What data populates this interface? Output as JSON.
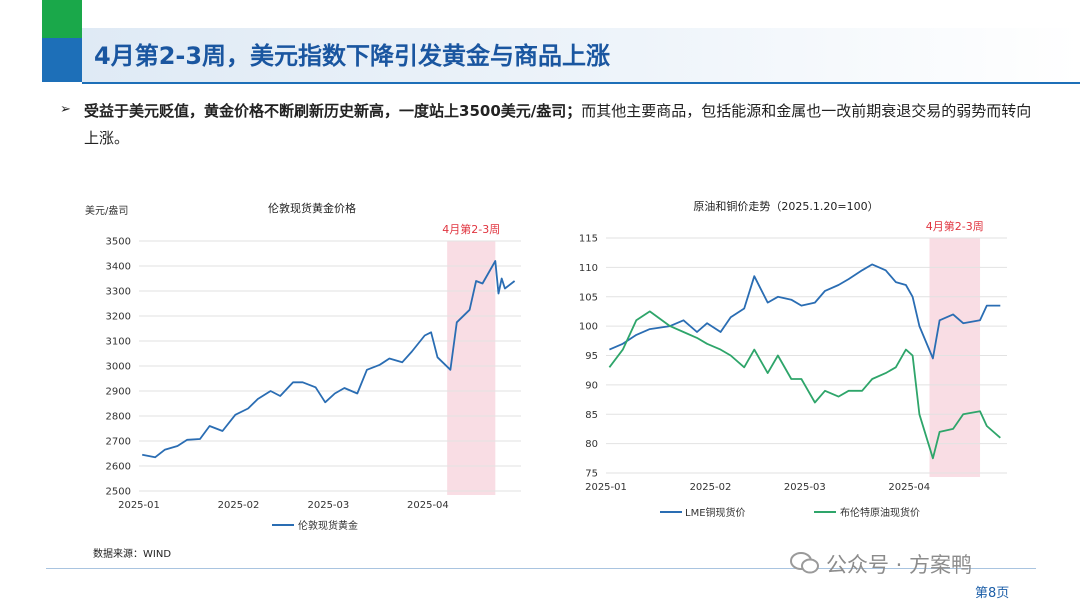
{
  "header": {
    "title": "4月第2-3周，美元指数下降引发黄金与商品上涨",
    "bullet_marker": "➢",
    "bullet_bold": "受益于美元贬值，黄金价格不断刷新历史新高，一度站上3500美元/盎司；",
    "bullet_rest": "而其他主要商品，包括能源和金属也一改前期衰退交易的弱势而转向上涨。"
  },
  "colors": {
    "title": "#1a56a0",
    "blue_series": "#2a6db3",
    "green_series": "#2ea56a",
    "highlight": "#f9dde4",
    "highlight_label": "#e0343f",
    "grid": "#e2e2e2"
  },
  "chart_data": [
    {
      "type": "line",
      "title": "伦敦现货黄金价格",
      "ylabel": "美元/盎司",
      "ylim": [
        2500,
        3500
      ],
      "yticks": [
        "2500",
        "2600",
        "2700",
        "2800",
        "2900",
        "3000",
        "3100",
        "3200",
        "3300",
        "3400",
        "3500"
      ],
      "xticks": [
        {
          "label": "2025-01",
          "date": "2025-01-01"
        },
        {
          "label": "2025-02",
          "date": "2025-02-01"
        },
        {
          "label": "2025-03",
          "date": "2025-03-01"
        },
        {
          "label": "2025-04",
          "date": "2025-04-01"
        }
      ],
      "highlight": {
        "label": "4月第2-3周",
        "from": "2025-04-07",
        "to": "2025-04-22"
      },
      "series": [
        {
          "name": "伦敦现货黄金",
          "color": "#2a6db3",
          "points": [
            [
              "2025-01-02",
              2645
            ],
            [
              "2025-01-06",
              2635
            ],
            [
              "2025-01-09",
              2665
            ],
            [
              "2025-01-13",
              2680
            ],
            [
              "2025-01-16",
              2705
            ],
            [
              "2025-01-20",
              2708
            ],
            [
              "2025-01-23",
              2760
            ],
            [
              "2025-01-27",
              2740
            ],
            [
              "2025-01-31",
              2805
            ],
            [
              "2025-02-04",
              2830
            ],
            [
              "2025-02-07",
              2868
            ],
            [
              "2025-02-11",
              2900
            ],
            [
              "2025-02-14",
              2880
            ],
            [
              "2025-02-18",
              2935
            ],
            [
              "2025-02-21",
              2935
            ],
            [
              "2025-02-25",
              2915
            ],
            [
              "2025-02-28",
              2855
            ],
            [
              "2025-03-03",
              2890
            ],
            [
              "2025-03-06",
              2912
            ],
            [
              "2025-03-10",
              2890
            ],
            [
              "2025-03-13",
              2985
            ],
            [
              "2025-03-17",
              3005
            ],
            [
              "2025-03-20",
              3030
            ],
            [
              "2025-03-24",
              3015
            ],
            [
              "2025-03-27",
              3058
            ],
            [
              "2025-03-31",
              3122
            ],
            [
              "2025-04-02",
              3135
            ],
            [
              "2025-04-04",
              3035
            ],
            [
              "2025-04-08",
              2985
            ],
            [
              "2025-04-10",
              3175
            ],
            [
              "2025-04-14",
              3225
            ],
            [
              "2025-04-16",
              3340
            ],
            [
              "2025-04-18",
              3330
            ],
            [
              "2025-04-22",
              3420
            ],
            [
              "2025-04-23",
              3290
            ],
            [
              "2025-04-24",
              3350
            ],
            [
              "2025-04-25",
              3310
            ],
            [
              "2025-04-28",
              3340
            ]
          ]
        }
      ]
    },
    {
      "type": "line",
      "title": "原油和铜价走势（2025.1.20=100）",
      "ylim": [
        75,
        115
      ],
      "yticks": [
        "75",
        "80",
        "85",
        "90",
        "95",
        "100",
        "105",
        "110",
        "115"
      ],
      "xticks": [
        {
          "label": "2025-01",
          "date": "2025-01-01"
        },
        {
          "label": "2025-02",
          "date": "2025-02-01"
        },
        {
          "label": "2025-03",
          "date": "2025-03-01"
        },
        {
          "label": "2025-04",
          "date": "2025-04-01"
        }
      ],
      "highlight": {
        "label": "4月第2-3周",
        "from": "2025-04-07",
        "to": "2025-04-22"
      },
      "series": [
        {
          "name": "LME铜现货价",
          "color": "#2a6db3",
          "points": [
            [
              "2025-01-02",
              96
            ],
            [
              "2025-01-06",
              97
            ],
            [
              "2025-01-10",
              98.5
            ],
            [
              "2025-01-14",
              99.5
            ],
            [
              "2025-01-20",
              100
            ],
            [
              "2025-01-24",
              101
            ],
            [
              "2025-01-28",
              99
            ],
            [
              "2025-01-31",
              100.5
            ],
            [
              "2025-02-04",
              99
            ],
            [
              "2025-02-07",
              101.5
            ],
            [
              "2025-02-11",
              103
            ],
            [
              "2025-02-14",
              108.5
            ],
            [
              "2025-02-18",
              104
            ],
            [
              "2025-02-21",
              105
            ],
            [
              "2025-02-25",
              104.5
            ],
            [
              "2025-02-28",
              103.5
            ],
            [
              "2025-03-04",
              104
            ],
            [
              "2025-03-07",
              106
            ],
            [
              "2025-03-11",
              107
            ],
            [
              "2025-03-14",
              108
            ],
            [
              "2025-03-18",
              109.5
            ],
            [
              "2025-03-21",
              110.5
            ],
            [
              "2025-03-25",
              109.5
            ],
            [
              "2025-03-28",
              107.5
            ],
            [
              "2025-03-31",
              107
            ],
            [
              "2025-04-02",
              105
            ],
            [
              "2025-04-04",
              100
            ],
            [
              "2025-04-08",
              94.5
            ],
            [
              "2025-04-10",
              101
            ],
            [
              "2025-04-14",
              102
            ],
            [
              "2025-04-17",
              100.5
            ],
            [
              "2025-04-22",
              101
            ],
            [
              "2025-04-24",
              103.5
            ],
            [
              "2025-04-28",
              103.5
            ]
          ]
        },
        {
          "name": "布伦特原油现货价",
          "color": "#2ea56a",
          "points": [
            [
              "2025-01-02",
              93
            ],
            [
              "2025-01-06",
              96
            ],
            [
              "2025-01-10",
              101
            ],
            [
              "2025-01-14",
              102.5
            ],
            [
              "2025-01-20",
              100
            ],
            [
              "2025-01-24",
              99
            ],
            [
              "2025-01-28",
              98
            ],
            [
              "2025-01-31",
              97
            ],
            [
              "2025-02-04",
              96
            ],
            [
              "2025-02-07",
              95
            ],
            [
              "2025-02-11",
              93
            ],
            [
              "2025-02-14",
              96
            ],
            [
              "2025-02-18",
              92
            ],
            [
              "2025-02-21",
              95
            ],
            [
              "2025-02-25",
              91
            ],
            [
              "2025-02-28",
              91
            ],
            [
              "2025-03-04",
              87
            ],
            [
              "2025-03-07",
              89
            ],
            [
              "2025-03-11",
              88
            ],
            [
              "2025-03-14",
              89
            ],
            [
              "2025-03-18",
              89
            ],
            [
              "2025-03-21",
              91
            ],
            [
              "2025-03-25",
              92
            ],
            [
              "2025-03-28",
              93
            ],
            [
              "2025-03-31",
              96
            ],
            [
              "2025-04-02",
              95
            ],
            [
              "2025-04-04",
              85
            ],
            [
              "2025-04-08",
              77.5
            ],
            [
              "2025-04-10",
              82
            ],
            [
              "2025-04-14",
              82.5
            ],
            [
              "2025-04-17",
              85
            ],
            [
              "2025-04-22",
              85.5
            ],
            [
              "2025-04-24",
              83
            ],
            [
              "2025-04-28",
              81
            ]
          ]
        }
      ]
    }
  ],
  "footer": {
    "source": "数据来源：WIND",
    "watermark": "公众号 · 方案鸭",
    "page": "第8页"
  }
}
